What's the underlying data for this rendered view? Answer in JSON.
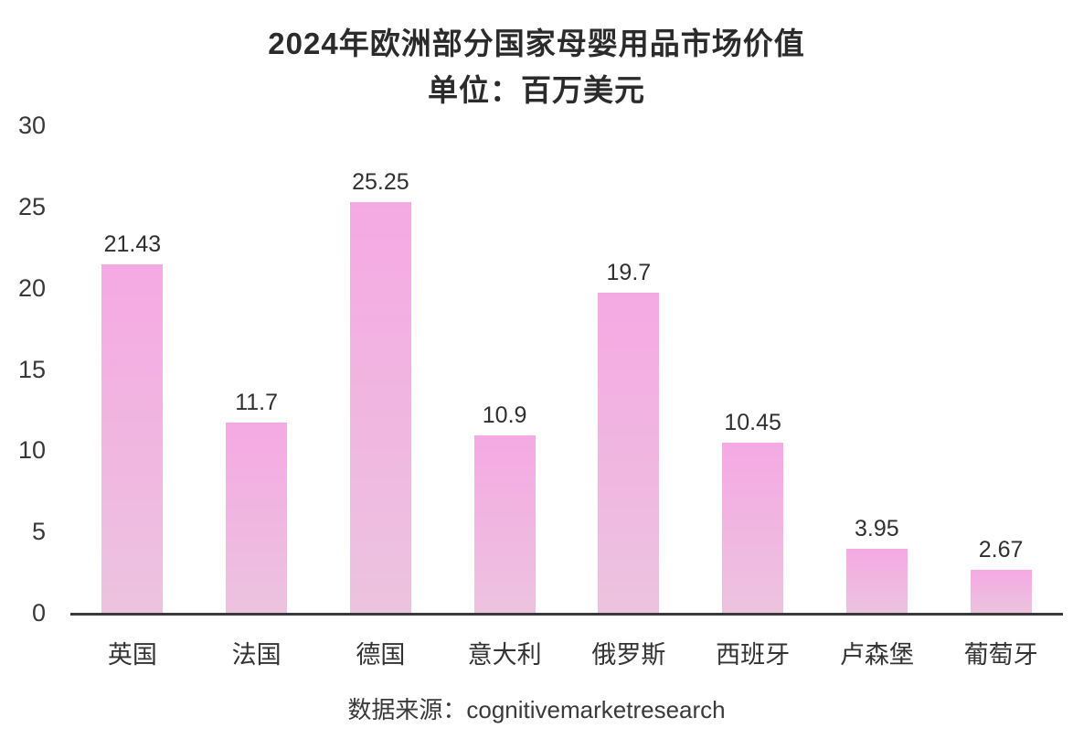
{
  "header": {
    "title_line1": "2024年欧洲部分国家母婴用品市场价值",
    "title_line2": "单位：百万美元"
  },
  "footer": {
    "source_text": "数据来源：cognitivemarketresearch"
  },
  "colors": {
    "bar_gradient_top": "#f5a9e3",
    "bar_gradient_bottom": "#ecc3df",
    "axis_line": "#3b3b3b",
    "tick_text": "#383838",
    "label_text": "#303030",
    "title_text": "#2b2b2b",
    "background": "#ffffff"
  },
  "chart_data": {
    "type": "bar",
    "title": "2024年欧洲部分国家母婴用品市场价值",
    "subtitle": "单位：百万美元",
    "categories": [
      "英国",
      "法国",
      "德国",
      "意大利",
      "俄罗斯",
      "西班牙",
      "卢森堡",
      "葡萄牙"
    ],
    "values": [
      21.43,
      11.7,
      25.25,
      10.9,
      19.7,
      10.45,
      3.95,
      2.67
    ],
    "value_labels": [
      "21.43",
      "11.7",
      "25.25",
      "10.9",
      "19.7",
      "10.45",
      "3.95",
      "2.67"
    ],
    "xlabel": "",
    "ylabel": "",
    "ylim": [
      0,
      30
    ],
    "yticks": [
      0,
      5,
      10,
      15,
      20,
      25,
      30
    ],
    "grid": false,
    "legend": false,
    "source": "数据来源：cognitivemarketresearch"
  }
}
